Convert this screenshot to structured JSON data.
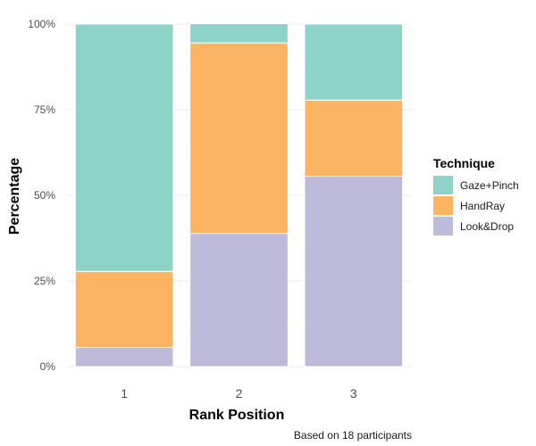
{
  "chart_data": {
    "type": "bar",
    "stacked": true,
    "xlabel": "Rank Position",
    "ylabel": "Percentage",
    "caption": "Based on 18 participants",
    "categories": [
      "1",
      "2",
      "3"
    ],
    "yticks": [
      "0%",
      "25%",
      "50%",
      "75%",
      "100%"
    ],
    "ylim": [
      0,
      100
    ],
    "grid": true,
    "legend_title": "Technique",
    "legend_position": "right",
    "series": [
      {
        "name": "Gaze+Pinch",
        "color": "#8DD3C7",
        "values": [
          72.2,
          5.6,
          22.2
        ]
      },
      {
        "name": "HandRay",
        "color": "#FDB462",
        "values": [
          22.2,
          55.6,
          22.2
        ]
      },
      {
        "name": "Look&Drop",
        "color": "#BEBADA",
        "values": [
          5.6,
          38.9,
          55.6
        ]
      }
    ],
    "stack_order_bottom_to_top": [
      "Look&Drop",
      "HandRay",
      "Gaze+Pinch"
    ],
    "legend_order": [
      "Gaze+Pinch",
      "HandRay",
      "Look&Drop"
    ]
  }
}
